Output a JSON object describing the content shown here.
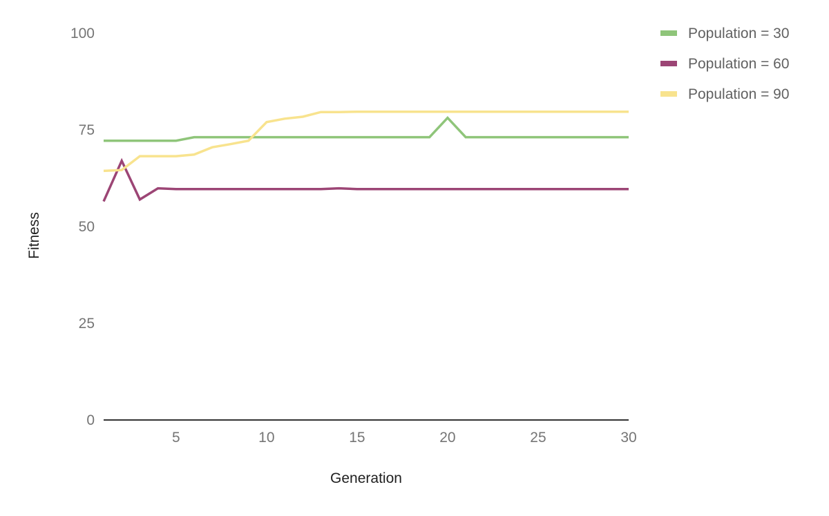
{
  "chart_data": {
    "type": "line",
    "title": "",
    "xlabel": "Generation",
    "ylabel": "Fitness",
    "xlim": [
      1,
      30
    ],
    "ylim": [
      0,
      100
    ],
    "x_ticks": [
      5,
      10,
      15,
      20,
      25,
      30
    ],
    "y_ticks": [
      0,
      25,
      50,
      75,
      100
    ],
    "grid": false,
    "legend_position": "top-right",
    "x": [
      1,
      2,
      3,
      4,
      5,
      6,
      7,
      8,
      9,
      10,
      11,
      12,
      13,
      14,
      15,
      16,
      17,
      18,
      19,
      20,
      21,
      22,
      23,
      24,
      25,
      26,
      27,
      28,
      29,
      30
    ],
    "series": [
      {
        "name": "Population = 30",
        "color": "#8fc57a",
        "values": [
          72.2,
          72.2,
          72.2,
          72.2,
          72.2,
          73.1,
          73.1,
          73.1,
          73.1,
          73.1,
          73.1,
          73.1,
          73.1,
          73.1,
          73.1,
          73.1,
          73.1,
          73.1,
          73.1,
          78.1,
          73.1,
          73.1,
          73.1,
          73.1,
          73.1,
          73.1,
          73.1,
          73.1,
          73.1,
          73.1
        ]
      },
      {
        "name": "Population = 60",
        "color": "#9c4575",
        "values": [
          56.5,
          67.0,
          57.0,
          59.9,
          59.7,
          59.7,
          59.7,
          59.7,
          59.7,
          59.7,
          59.7,
          59.7,
          59.7,
          59.9,
          59.7,
          59.7,
          59.7,
          59.7,
          59.7,
          59.7,
          59.7,
          59.7,
          59.7,
          59.7,
          59.7,
          59.7,
          59.7,
          59.7,
          59.7,
          59.7
        ]
      },
      {
        "name": "Population = 90",
        "color": "#f8e38e",
        "values": [
          64.4,
          64.6,
          68.2,
          68.2,
          68.2,
          68.6,
          70.5,
          71.3,
          72.2,
          77.0,
          77.9,
          78.4,
          79.6,
          79.6,
          79.7,
          79.7,
          79.7,
          79.7,
          79.7,
          79.7,
          79.7,
          79.7,
          79.7,
          79.7,
          79.7,
          79.7,
          79.7,
          79.7,
          79.7,
          79.7
        ]
      }
    ]
  }
}
